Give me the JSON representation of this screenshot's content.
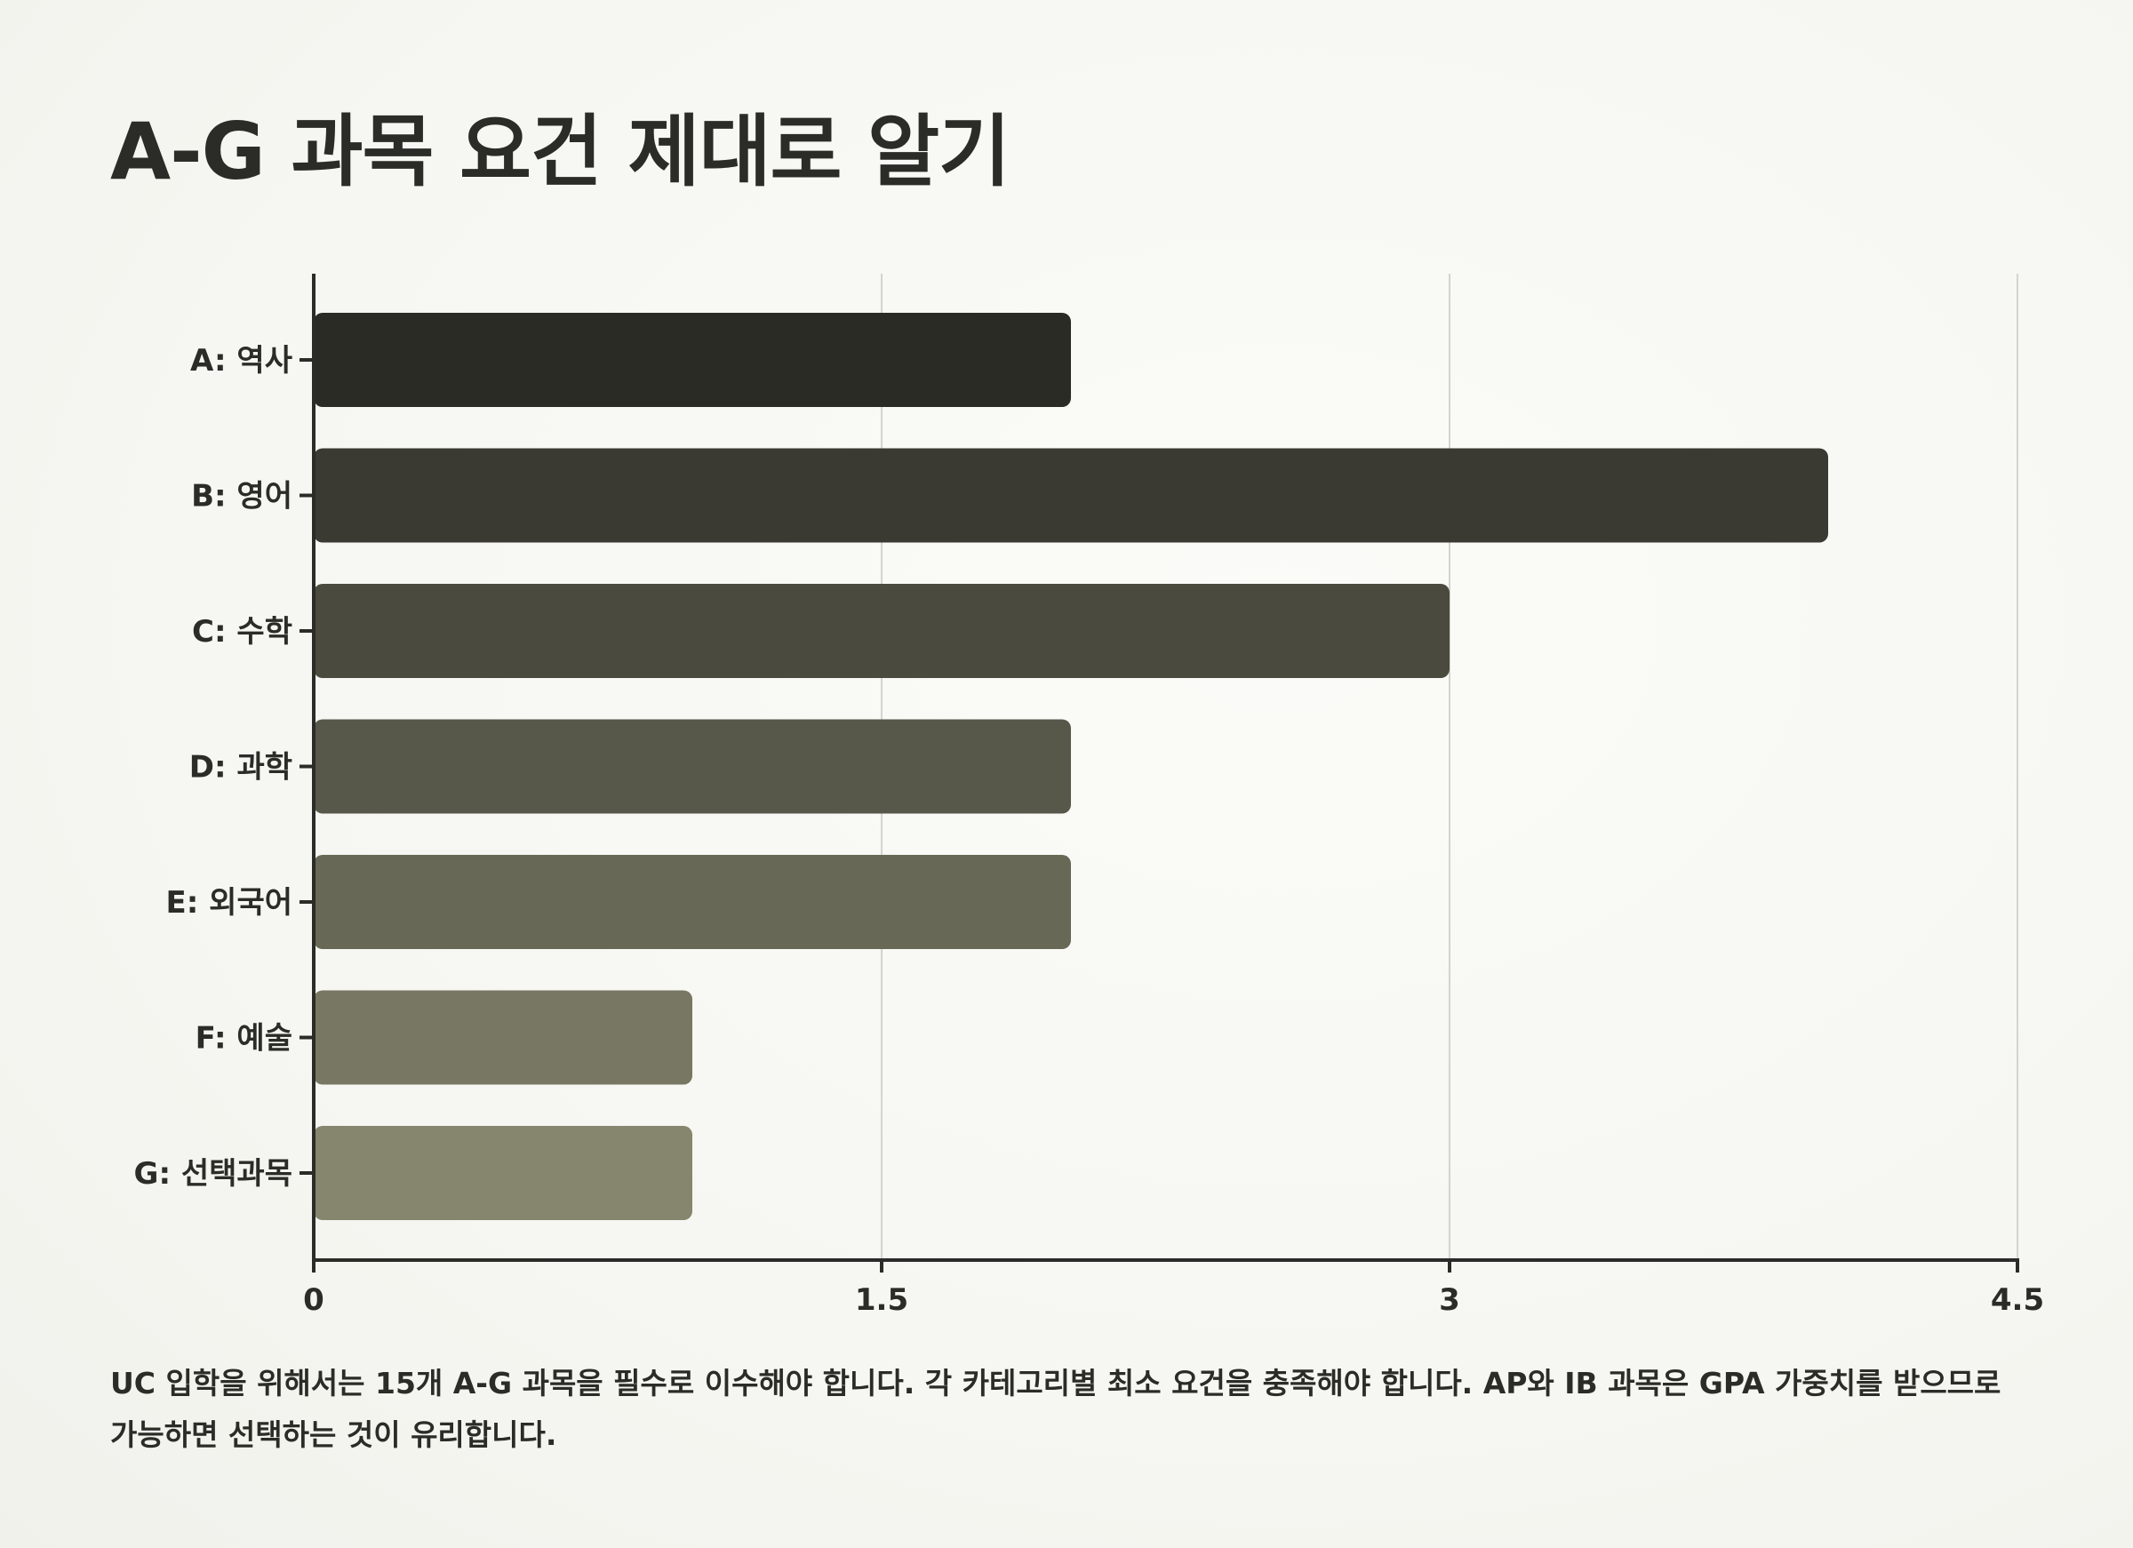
{
  "title": "A-G 과목 요건 제대로 알기",
  "caption": "UC 입학을 위해서는 15개 A-G 과목을 필수로 이수해야 합니다. 각 카테고리별 최소 요건을 충족해야 합니다. AP와 IB 과목은 GPA 가중치를 받으므로 가능하면 선택하는 것이 유리합니다.",
  "chart_data": {
    "type": "bar",
    "orientation": "horizontal",
    "title": "A-G 과목 요건 제대로 알기",
    "xlabel": "",
    "ylabel": "",
    "categories": [
      "A: 역사",
      "B: 영어",
      "C: 수학",
      "D: 과학",
      "E: 외국어",
      "F: 예술",
      "G: 선택과목"
    ],
    "values": [
      2,
      4,
      3,
      2,
      2,
      1,
      1
    ],
    "xlim": [
      0,
      4.5
    ],
    "xticks": [
      "0",
      "1.5",
      "3",
      "4.5"
    ],
    "xtick_values": [
      0,
      1.5,
      3,
      4.5
    ],
    "grid": "vertical",
    "legend": "none",
    "colors": [
      "#2b2b25",
      "#3a3a32",
      "#4a4a3e",
      "#58584a",
      "#686856",
      "#777763",
      "#86866f"
    ]
  }
}
